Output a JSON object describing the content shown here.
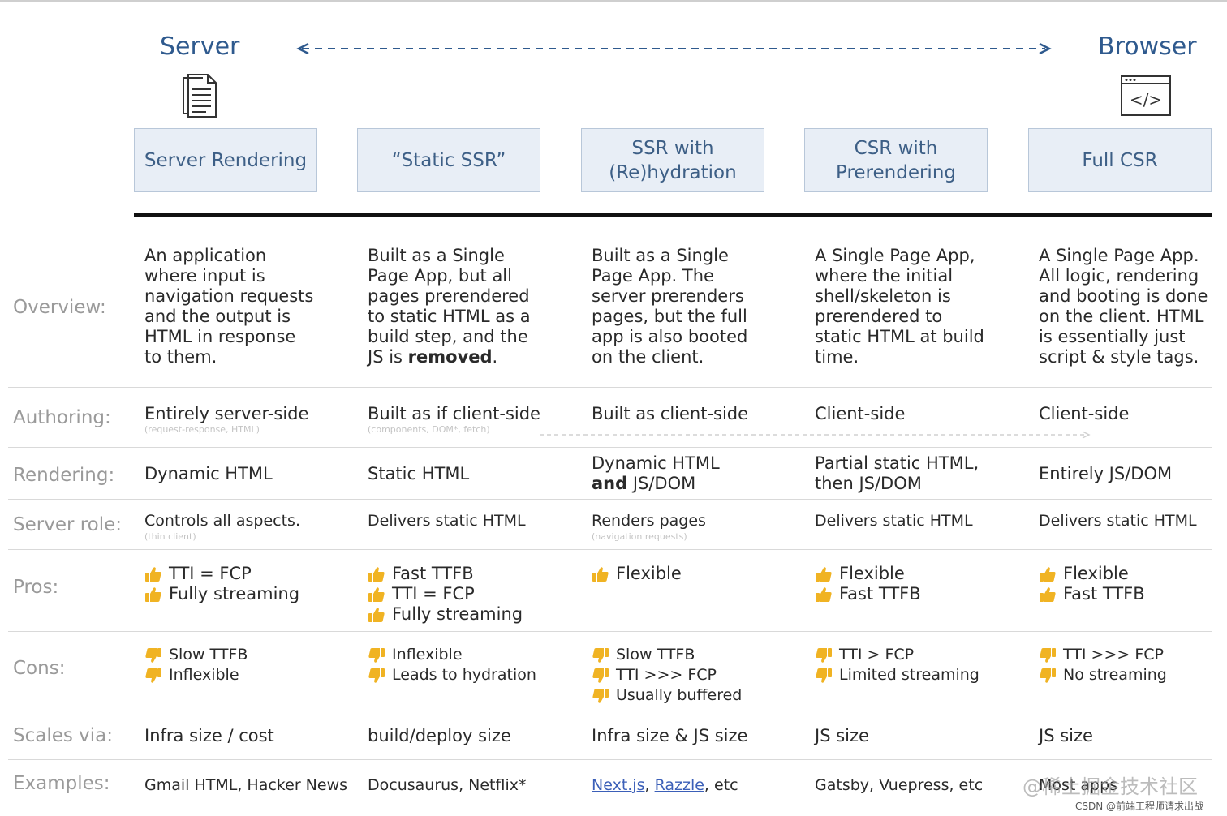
{
  "header": {
    "left_end": "Server",
    "right_end": "Browser"
  },
  "columns": [
    {
      "title": "Server Rendering"
    },
    {
      "title": "“Static SSR”"
    },
    {
      "title": "SSR with\n(Re)hydration"
    },
    {
      "title": "CSR with\nPrerendering"
    },
    {
      "title": "Full CSR"
    }
  ],
  "rows": {
    "overview": {
      "label": "Overview:",
      "cells": [
        "An application\nwhere input is\nnavigation requests\nand the output is\nHTML in response\nto them.",
        "Built as a Single\nPage App, but all\npages prerendered\nto static HTML as a\nbuild step, and the\nJS is ",
        "Built as a Single\nPage App. The\nserver prerenders\npages, but the full\napp is also booted\non the client.",
        "A Single Page App,\nwhere the initial\nshell/skeleton is\nprerendered to\nstatic HTML at build\ntime.",
        "A Single Page App.\nAll logic, rendering\nand booting is done\non the client. HTML\nis essentially just\nscript & style tags."
      ],
      "emphasis": "removed",
      "emphasis_tail": "."
    },
    "authoring": {
      "label": "Authoring:",
      "cells": [
        "Entirely server-side",
        "Built as if client-side",
        "Built as client-side",
        "Client-side",
        "Client-side"
      ],
      "subs": [
        "(request-response, HTML)",
        "(components, DOM*, fetch)"
      ]
    },
    "rendering": {
      "label": "Rendering:",
      "cells": [
        "Dynamic HTML",
        "Static HTML",
        "Dynamic HTML",
        "Partial static HTML,\nthen JS/DOM",
        "Entirely JS/DOM"
      ],
      "c3_bold": "and",
      "c3_tail": " JS/DOM"
    },
    "server_role": {
      "label": "Server role:",
      "cells": [
        "Controls all aspects.",
        "Delivers static HTML",
        "Renders pages",
        "Delivers static HTML",
        "Delivers static HTML"
      ],
      "subs": [
        "(thin client)",
        "(navigation requests)"
      ]
    },
    "pros": {
      "label": "Pros:",
      "cells": [
        [
          "TTI = FCP",
          "Fully streaming"
        ],
        [
          "Fast TTFB",
          "TTI = FCP",
          "Fully streaming"
        ],
        [
          "Flexible"
        ],
        [
          "Flexible",
          "Fast TTFB"
        ],
        [
          "Flexible",
          "Fast TTFB"
        ]
      ]
    },
    "cons": {
      "label": "Cons:",
      "cells": [
        [
          "Slow TTFB",
          "Inflexible"
        ],
        [
          "Inflexible",
          "Leads to hydration"
        ],
        [
          "Slow TTFB",
          "TTI >>> FCP",
          "Usually buffered"
        ],
        [
          "TTI > FCP",
          "Limited streaming"
        ],
        [
          "TTI >>> FCP",
          "No streaming"
        ]
      ]
    },
    "scales": {
      "label": "Scales via:",
      "cells": [
        "Infra size / cost",
        "build/deploy size",
        "Infra size & JS size",
        "JS size",
        "JS size"
      ]
    },
    "examples": {
      "label": "Examples:",
      "cells": [
        "Gmail HTML, Hacker News",
        "Docusaurus, Netflix*",
        "",
        "Gatsby, Vuepress, etc",
        "Most apps"
      ],
      "link1": "Next.js",
      "link_sep": ", ",
      "link2": "Razzle",
      "link_tail": ", etc"
    }
  },
  "watermark": {
    "main": "@稀土掘金技术社区",
    "csdn": "CSDN @前端工程师请求出战"
  },
  "colors": {
    "accent": "#2f5a8e",
    "box_fill": "#e8eef6",
    "thumb": "#f0b323",
    "label_gray": "#9a9a9a"
  },
  "icons": {
    "left": "document-icon",
    "right": "code-window-icon",
    "pros": "thumbs-up-icon",
    "cons": "thumbs-down-icon"
  }
}
